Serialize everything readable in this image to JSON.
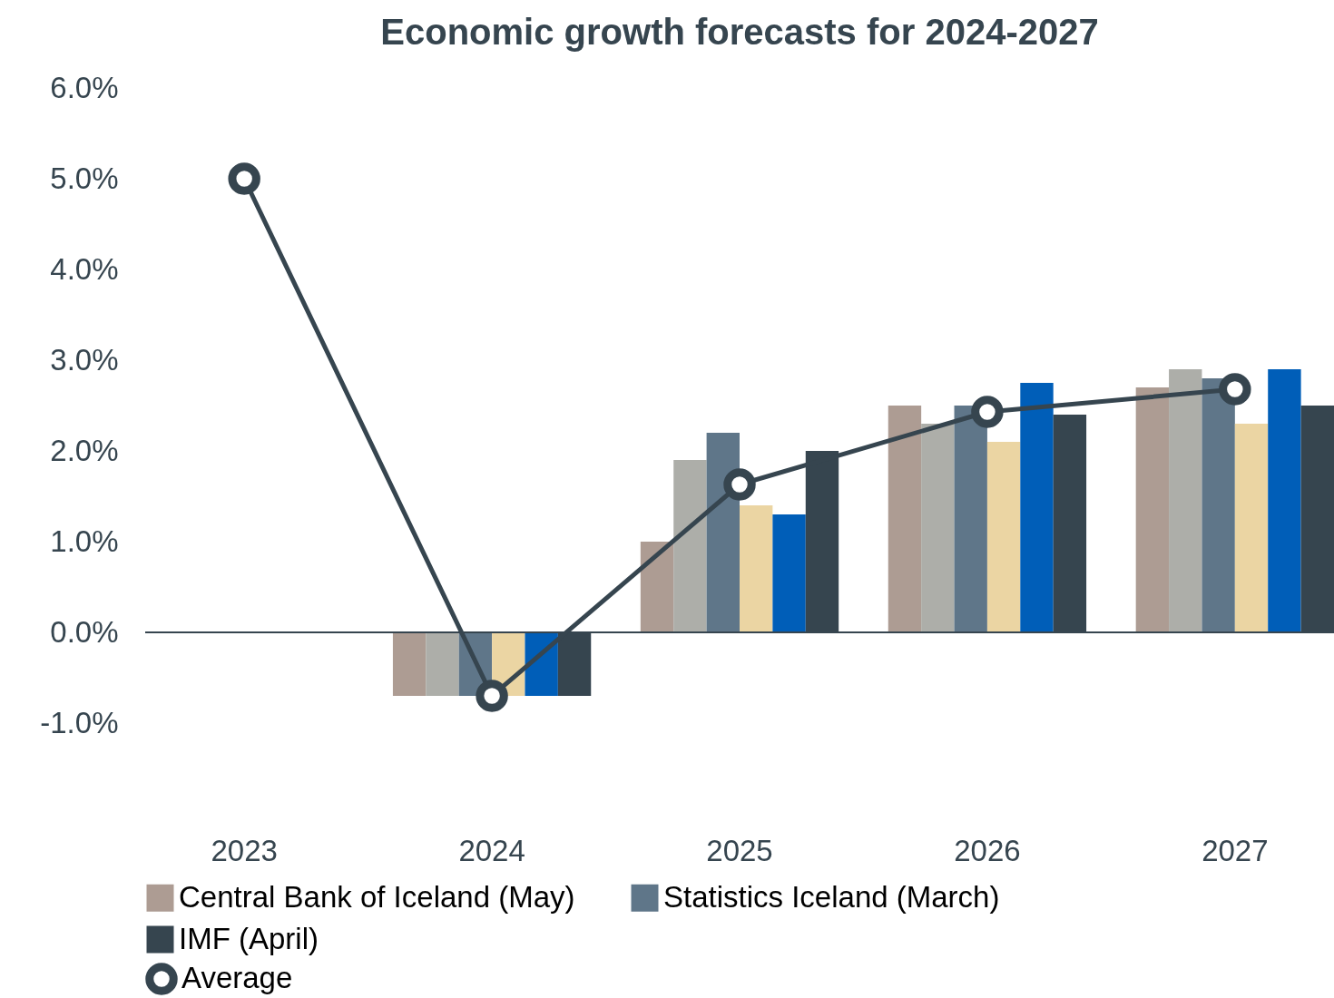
{
  "chart_data": {
    "type": "bar",
    "title": "Economic growth forecasts for 2024-2027",
    "categories": [
      "2023",
      "2024",
      "2025",
      "2026",
      "2027"
    ],
    "series": [
      {
        "name": "Central Bank of Iceland (May)",
        "color": "#ad9c93",
        "values": [
          null,
          -0.7,
          1.0,
          2.5,
          2.7
        ]
      },
      {
        "color": "#adaea9",
        "values": [
          null,
          -0.7,
          1.9,
          2.3,
          2.9
        ]
      },
      {
        "name": "Statistics Iceland (March)",
        "color": "#5f7689",
        "values": [
          null,
          -0.7,
          2.2,
          2.5,
          2.8
        ]
      },
      {
        "color": "#ebd5a3",
        "values": [
          null,
          -0.7,
          1.4,
          2.1,
          2.3
        ]
      },
      {
        "color": "#005eb8",
        "values": [
          null,
          -0.7,
          1.3,
          2.75,
          2.9
        ]
      },
      {
        "name": "IMF (April)",
        "color": "#36454f",
        "values": [
          null,
          -0.7,
          2.0,
          2.4,
          2.5
        ]
      },
      {
        "name": "Average",
        "type": "line",
        "color": "#36454f",
        "values": [
          5.0,
          -0.7,
          1.63,
          2.43,
          2.68
        ]
      }
    ],
    "marker": "circle",
    "ylim": [
      -1,
      6
    ],
    "yticks": [
      {
        "value": -1,
        "label": "-1.0%"
      },
      {
        "value": 0,
        "label": "0.0%"
      },
      {
        "value": 1,
        "label": "1.0%"
      },
      {
        "value": 2,
        "label": "2.0%"
      },
      {
        "value": 3,
        "label": "3.0%"
      },
      {
        "value": 4,
        "label": "4.0%"
      },
      {
        "value": 5,
        "label": "5.0%"
      },
      {
        "value": 6,
        "label": "6.0%"
      }
    ],
    "ref_lines": [
      {
        "axis": "y",
        "value": 0,
        "color": "#36454f"
      }
    ],
    "grid": false,
    "legend": "bottom"
  }
}
